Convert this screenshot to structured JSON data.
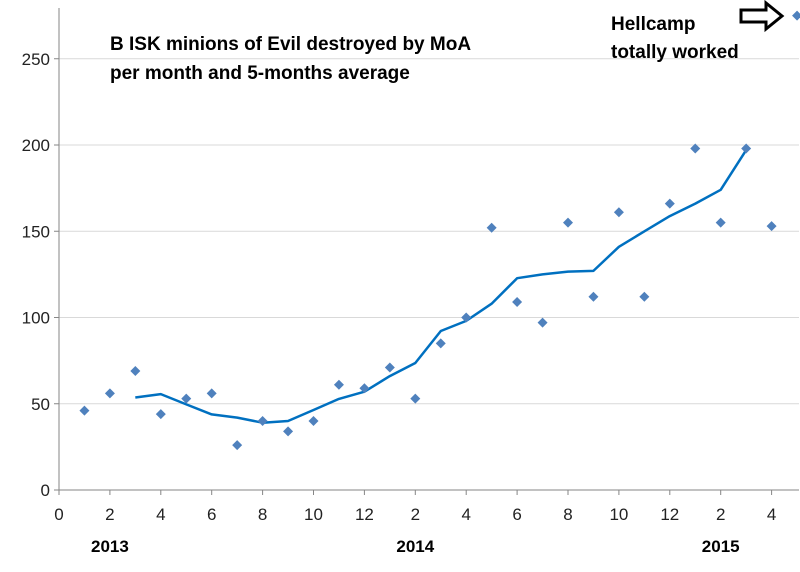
{
  "chart_data": {
    "type": "scatter+line",
    "title_lines": [
      "B ISK minions of Evil destroyed by MoA",
      "per month and 5-months average"
    ],
    "xlabel": "",
    "ylabel": "",
    "xlim": [
      0,
      29
    ],
    "ylim": [
      0,
      270
    ],
    "x_ticks": [
      0,
      2,
      4,
      6,
      8,
      10,
      12,
      14,
      16,
      18,
      20,
      22,
      24,
      26,
      28
    ],
    "x_tick_labels": [
      "0",
      "2",
      "4",
      "6",
      "8",
      "10",
      "12",
      "2",
      "4",
      "6",
      "8",
      "10",
      "12",
      "2",
      "4"
    ],
    "y_ticks": [
      0,
      50,
      100,
      150,
      200,
      250
    ],
    "y_tick_labels": [
      "0",
      "50",
      "100",
      "150",
      "200",
      "250"
    ],
    "year_labels": [
      {
        "text": "2013",
        "x": 2
      },
      {
        "text": "2014",
        "x": 14
      },
      {
        "text": "2015",
        "x": 26
      }
    ],
    "grid": {
      "horizontal": true,
      "vertical": false
    },
    "series": [
      {
        "name": "monthly",
        "kind": "scatter",
        "marker": "diamond",
        "color": "#4f81bd",
        "points": [
          [
            1,
            46
          ],
          [
            2,
            56
          ],
          [
            3,
            69
          ],
          [
            4,
            44
          ],
          [
            5,
            53
          ],
          [
            6,
            56
          ],
          [
            7,
            26
          ],
          [
            8,
            40
          ],
          [
            9,
            34
          ],
          [
            10,
            40
          ],
          [
            11,
            61
          ],
          [
            12,
            59
          ],
          [
            13,
            71
          ],
          [
            14,
            53
          ],
          [
            15,
            85
          ],
          [
            16,
            100
          ],
          [
            17,
            152
          ],
          [
            18,
            109
          ],
          [
            19,
            97
          ],
          [
            20,
            155
          ],
          [
            21,
            112
          ],
          [
            22,
            161
          ],
          [
            23,
            112
          ],
          [
            24,
            166
          ],
          [
            25,
            198
          ],
          [
            26,
            155
          ],
          [
            27,
            198
          ],
          [
            28,
            153
          ],
          [
            29,
            275
          ]
        ]
      },
      {
        "name": "5-months average",
        "kind": "line",
        "color": "#0070c0",
        "points": [
          [
            3,
            53.6
          ],
          [
            4,
            55.6
          ],
          [
            5,
            49.6
          ],
          [
            6,
            43.8
          ],
          [
            7,
            42
          ],
          [
            8,
            39
          ],
          [
            9,
            40
          ],
          [
            10,
            46.4
          ],
          [
            11,
            52.8
          ],
          [
            12,
            57
          ],
          [
            13,
            66
          ],
          [
            14,
            73.6
          ],
          [
            15,
            92.2
          ],
          [
            16,
            98
          ],
          [
            17,
            108
          ],
          [
            18,
            122.8
          ],
          [
            19,
            125
          ],
          [
            20,
            126.6
          ],
          [
            21,
            127
          ],
          [
            22,
            141
          ],
          [
            23,
            150
          ],
          [
            24,
            158.8
          ],
          [
            25,
            166
          ],
          [
            26,
            174
          ],
          [
            27,
            197
          ]
        ]
      }
    ],
    "annotation": {
      "lines": [
        "Hellcamp",
        "totally worked"
      ],
      "icon": "right-arrow-icon"
    }
  }
}
